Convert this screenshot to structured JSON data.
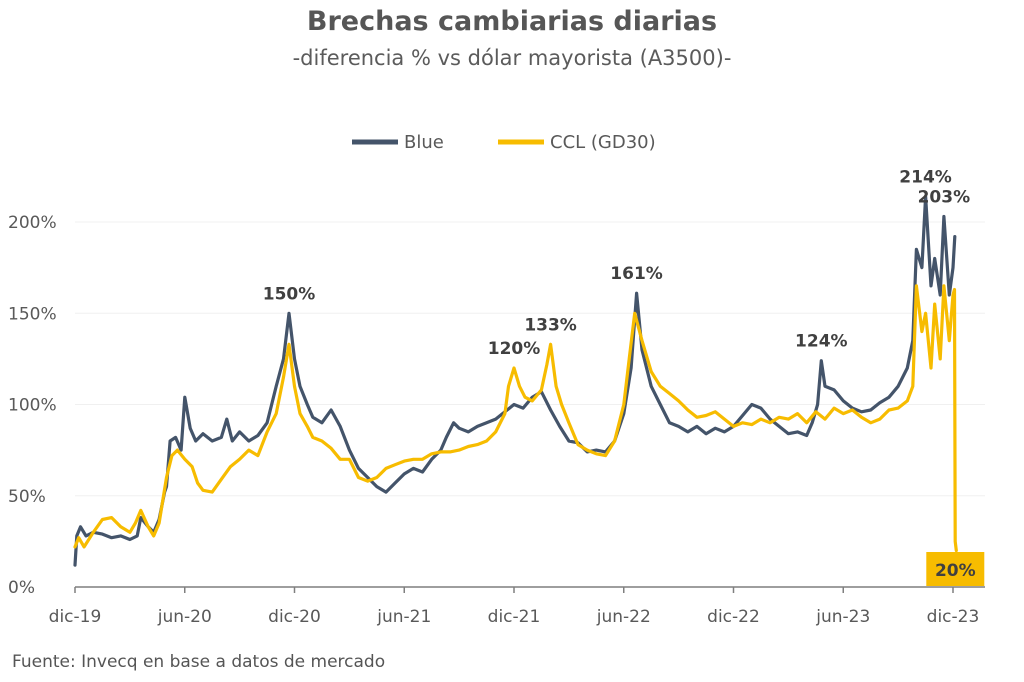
{
  "title": "Brechas cambiarias diarias",
  "subtitle": "-diferencia % vs dólar mayorista (A3500)-",
  "source": "Fuente: Invecq en base a datos de mercado",
  "colors": {
    "blue": "#44546a",
    "ccl": "#f7bc00",
    "axis": "#7f7f7f",
    "grid": "#f0f0f0",
    "text": "#595959",
    "annotation": "#404040"
  },
  "chart_data": {
    "type": "line",
    "x_unit": "months since 2019-12",
    "xlim": [
      0,
      48
    ],
    "ylim": [
      0,
      215
    ],
    "yticks": [
      {
        "value": 0,
        "label": "0%"
      },
      {
        "value": 50,
        "label": "50%"
      },
      {
        "value": 100,
        "label": "100%"
      },
      {
        "value": 150,
        "label": "150%"
      },
      {
        "value": 200,
        "label": "200%"
      }
    ],
    "xticks": [
      {
        "value": 0,
        "label": "dic-19"
      },
      {
        "value": 6,
        "label": "jun-20"
      },
      {
        "value": 12,
        "label": "dic-20"
      },
      {
        "value": 18,
        "label": "jun-21"
      },
      {
        "value": 24,
        "label": "dic-21"
      },
      {
        "value": 30,
        "label": "jun-22"
      },
      {
        "value": 36,
        "label": "dic-22"
      },
      {
        "value": 42,
        "label": "jun-23"
      },
      {
        "value": 48,
        "label": "dic-23"
      }
    ],
    "series": [
      {
        "name": "Blue",
        "color": "#44546a",
        "points": [
          [
            0,
            12
          ],
          [
            0.1,
            28
          ],
          [
            0.3,
            33
          ],
          [
            0.6,
            28
          ],
          [
            1,
            30
          ],
          [
            1.5,
            29
          ],
          [
            2,
            27
          ],
          [
            2.5,
            28
          ],
          [
            3,
            26
          ],
          [
            3.4,
            28
          ],
          [
            3.6,
            38
          ],
          [
            4,
            33
          ],
          [
            4.3,
            30
          ],
          [
            4.6,
            37
          ],
          [
            4.9,
            52
          ],
          [
            5,
            55
          ],
          [
            5.2,
            80
          ],
          [
            5.5,
            82
          ],
          [
            5.8,
            75
          ],
          [
            6,
            104
          ],
          [
            6.3,
            87
          ],
          [
            6.6,
            80
          ],
          [
            7,
            84
          ],
          [
            7.5,
            80
          ],
          [
            8,
            82
          ],
          [
            8.3,
            92
          ],
          [
            8.6,
            80
          ],
          [
            9,
            85
          ],
          [
            9.5,
            80
          ],
          [
            10,
            83
          ],
          [
            10.5,
            90
          ],
          [
            11,
            110
          ],
          [
            11.4,
            125
          ],
          [
            11.7,
            150
          ],
          [
            12,
            125
          ],
          [
            12.3,
            110
          ],
          [
            12.7,
            100
          ],
          [
            13,
            93
          ],
          [
            13.5,
            90
          ],
          [
            14,
            97
          ],
          [
            14.5,
            88
          ],
          [
            15,
            75
          ],
          [
            15.5,
            65
          ],
          [
            16,
            60
          ],
          [
            16.5,
            55
          ],
          [
            17,
            52
          ],
          [
            17.5,
            57
          ],
          [
            18,
            62
          ],
          [
            18.5,
            65
          ],
          [
            19,
            63
          ],
          [
            19.5,
            70
          ],
          [
            20,
            75
          ],
          [
            20.3,
            82
          ],
          [
            20.7,
            90
          ],
          [
            21,
            87
          ],
          [
            21.5,
            85
          ],
          [
            22,
            88
          ],
          [
            22.5,
            90
          ],
          [
            23,
            92
          ],
          [
            23.5,
            96
          ],
          [
            24,
            100
          ],
          [
            24.5,
            98
          ],
          [
            25,
            104
          ],
          [
            25.5,
            107
          ],
          [
            26,
            97
          ],
          [
            26.5,
            88
          ],
          [
            27,
            80
          ],
          [
            27.5,
            79
          ],
          [
            28,
            74
          ],
          [
            28.5,
            75
          ],
          [
            29,
            74
          ],
          [
            29.5,
            80
          ],
          [
            30,
            95
          ],
          [
            30.4,
            120
          ],
          [
            30.7,
            161
          ],
          [
            31,
            130
          ],
          [
            31.5,
            110
          ],
          [
            32,
            100
          ],
          [
            32.5,
            90
          ],
          [
            33,
            88
          ],
          [
            33.5,
            85
          ],
          [
            34,
            88
          ],
          [
            34.5,
            84
          ],
          [
            35,
            87
          ],
          [
            35.5,
            85
          ],
          [
            36,
            88
          ],
          [
            36.5,
            94
          ],
          [
            37,
            100
          ],
          [
            37.5,
            98
          ],
          [
            38,
            92
          ],
          [
            38.5,
            88
          ],
          [
            39,
            84
          ],
          [
            39.5,
            85
          ],
          [
            40,
            83
          ],
          [
            40.3,
            90
          ],
          [
            40.6,
            100
          ],
          [
            40.8,
            124
          ],
          [
            41,
            110
          ],
          [
            41.5,
            108
          ],
          [
            42,
            102
          ],
          [
            42.5,
            98
          ],
          [
            43,
            96
          ],
          [
            43.5,
            97
          ],
          [
            44,
            101
          ],
          [
            44.5,
            104
          ],
          [
            45,
            110
          ],
          [
            45.5,
            120
          ],
          [
            45.8,
            135
          ],
          [
            46,
            185
          ],
          [
            46.3,
            175
          ],
          [
            46.5,
            214
          ],
          [
            46.8,
            165
          ],
          [
            47,
            180
          ],
          [
            47.3,
            160
          ],
          [
            47.5,
            203
          ],
          [
            47.8,
            160
          ],
          [
            48,
            175
          ],
          [
            48.1,
            192
          ]
        ]
      },
      {
        "name": "CCL (GD30)",
        "color": "#f7bc00",
        "points": [
          [
            0,
            22
          ],
          [
            0.2,
            27
          ],
          [
            0.5,
            22
          ],
          [
            1,
            30
          ],
          [
            1.5,
            37
          ],
          [
            2,
            38
          ],
          [
            2.5,
            33
          ],
          [
            3,
            30
          ],
          [
            3.3,
            35
          ],
          [
            3.6,
            42
          ],
          [
            4,
            33
          ],
          [
            4.3,
            28
          ],
          [
            4.6,
            35
          ],
          [
            5,
            60
          ],
          [
            5.3,
            72
          ],
          [
            5.6,
            75
          ],
          [
            6,
            70
          ],
          [
            6.4,
            66
          ],
          [
            6.7,
            57
          ],
          [
            7,
            53
          ],
          [
            7.5,
            52
          ],
          [
            8,
            59
          ],
          [
            8.5,
            66
          ],
          [
            9,
            70
          ],
          [
            9.5,
            75
          ],
          [
            10,
            72
          ],
          [
            10.5,
            85
          ],
          [
            11,
            95
          ],
          [
            11.4,
            115
          ],
          [
            11.7,
            133
          ],
          [
            12,
            110
          ],
          [
            12.3,
            95
          ],
          [
            12.7,
            88
          ],
          [
            13,
            82
          ],
          [
            13.5,
            80
          ],
          [
            14,
            76
          ],
          [
            14.5,
            70
          ],
          [
            15,
            70
          ],
          [
            15.5,
            60
          ],
          [
            16,
            58
          ],
          [
            16.5,
            60
          ],
          [
            17,
            65
          ],
          [
            17.5,
            67
          ],
          [
            18,
            69
          ],
          [
            18.5,
            70
          ],
          [
            19,
            70
          ],
          [
            19.5,
            73
          ],
          [
            20,
            74
          ],
          [
            20.5,
            74
          ],
          [
            21,
            75
          ],
          [
            21.5,
            77
          ],
          [
            22,
            78
          ],
          [
            22.5,
            80
          ],
          [
            23,
            85
          ],
          [
            23.5,
            95
          ],
          [
            23.7,
            110
          ],
          [
            24,
            120
          ],
          [
            24.3,
            110
          ],
          [
            24.6,
            104
          ],
          [
            25,
            102
          ],
          [
            25.5,
            108
          ],
          [
            25.8,
            122
          ],
          [
            26,
            133
          ],
          [
            26.3,
            110
          ],
          [
            26.6,
            100
          ],
          [
            27,
            90
          ],
          [
            27.5,
            78
          ],
          [
            28,
            75
          ],
          [
            28.5,
            73
          ],
          [
            29,
            72
          ],
          [
            29.5,
            80
          ],
          [
            30,
            100
          ],
          [
            30.3,
            125
          ],
          [
            30.6,
            150
          ],
          [
            31,
            135
          ],
          [
            31.5,
            118
          ],
          [
            32,
            110
          ],
          [
            32.5,
            106
          ],
          [
            33,
            102
          ],
          [
            33.5,
            97
          ],
          [
            34,
            93
          ],
          [
            34.5,
            94
          ],
          [
            35,
            96
          ],
          [
            35.5,
            92
          ],
          [
            36,
            88
          ],
          [
            36.5,
            90
          ],
          [
            37,
            89
          ],
          [
            37.5,
            92
          ],
          [
            38,
            90
          ],
          [
            38.5,
            93
          ],
          [
            39,
            92
          ],
          [
            39.5,
            95
          ],
          [
            40,
            90
          ],
          [
            40.5,
            96
          ],
          [
            41,
            92
          ],
          [
            41.5,
            98
          ],
          [
            42,
            95
          ],
          [
            42.5,
            97
          ],
          [
            43,
            93
          ],
          [
            43.5,
            90
          ],
          [
            44,
            92
          ],
          [
            44.5,
            97
          ],
          [
            45,
            98
          ],
          [
            45.5,
            102
          ],
          [
            45.8,
            110
          ],
          [
            46,
            165
          ],
          [
            46.3,
            140
          ],
          [
            46.5,
            150
          ],
          [
            46.8,
            120
          ],
          [
            47,
            155
          ],
          [
            47.3,
            125
          ],
          [
            47.5,
            165
          ],
          [
            47.8,
            135
          ],
          [
            48,
            160
          ],
          [
            48.08,
            163
          ],
          [
            48.12,
            25
          ],
          [
            48.18,
            20
          ]
        ]
      }
    ],
    "annotations": [
      {
        "text": "150%",
        "x": 11.7,
        "y": 150
      },
      {
        "text": "120%",
        "x": 24,
        "y": 120
      },
      {
        "text": "133%",
        "x": 26,
        "y": 133
      },
      {
        "text": "161%",
        "x": 30.7,
        "y": 161
      },
      {
        "text": "124%",
        "x": 40.8,
        "y": 124
      },
      {
        "text": "214%",
        "x": 46.5,
        "y": 214
      },
      {
        "text": "203%",
        "x": 47.5,
        "y": 203
      }
    ],
    "last_value": {
      "text": "20%",
      "x": 48.18,
      "y": 20
    }
  }
}
